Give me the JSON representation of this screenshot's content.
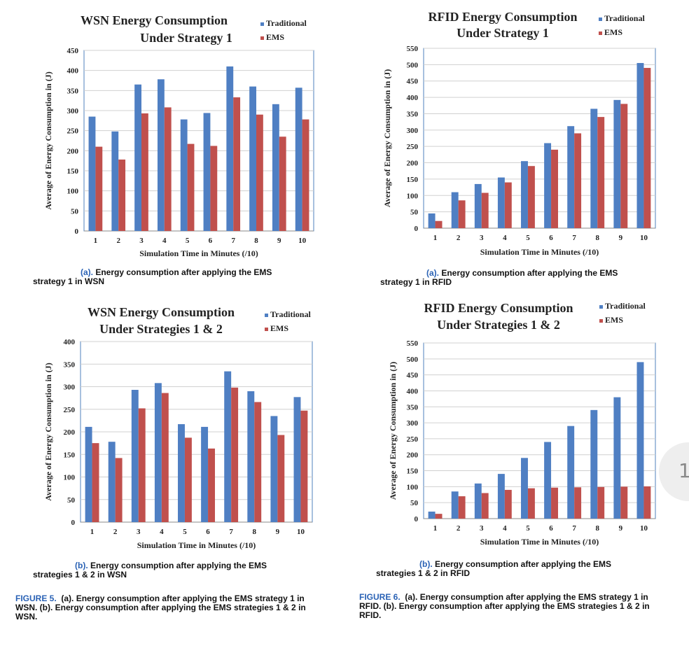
{
  "colors": {
    "traditional": "#4f7fc3",
    "ems": "#c0504d",
    "caption_label": "#2a62b5"
  },
  "chart_data": [
    {
      "type": "bar",
      "title_line1": "WSN Energy Consumption",
      "title_line2": "Under Strategy 1",
      "xlabel": "Simulation  Time  in Minutes  (/10)",
      "ylabel": "Average of Energy Consumption in (J)",
      "categories": [
        "1",
        "2",
        "3",
        "4",
        "5",
        "6",
        "7",
        "8",
        "9",
        "10"
      ],
      "ylim": [
        0,
        450
      ],
      "yticks": [
        0,
        50,
        100,
        150,
        200,
        250,
        300,
        350,
        400,
        450
      ],
      "series": [
        {
          "name": "Traditional",
          "values": [
            285,
            248,
            365,
            378,
            278,
            294,
            410,
            360,
            316,
            357
          ]
        },
        {
          "name": "EMS",
          "values": [
            210,
            178,
            293,
            308,
            217,
            212,
            333,
            290,
            235,
            278
          ]
        }
      ],
      "legend": "top-right",
      "grid": true
    },
    {
      "type": "bar",
      "title_line1": "RFID Energy Consumption",
      "title_line2": "Under Strategy 1",
      "xlabel": "Simulation  Time  in Minutes  (/10)",
      "ylabel": "Average of Energy  Consumption  in (J)",
      "categories": [
        "1",
        "2",
        "3",
        "4",
        "5",
        "6",
        "7",
        "8",
        "9",
        "10"
      ],
      "ylim": [
        0,
        550
      ],
      "yticks": [
        0,
        50,
        100,
        150,
        200,
        250,
        300,
        350,
        400,
        450,
        500,
        550
      ],
      "series": [
        {
          "name": "Traditional",
          "values": [
            45,
            110,
            135,
            155,
            205,
            260,
            312,
            365,
            392,
            505
          ]
        },
        {
          "name": "EMS",
          "values": [
            22,
            85,
            108,
            140,
            190,
            240,
            290,
            340,
            380,
            490
          ]
        }
      ],
      "legend": "top-right",
      "grid": true
    },
    {
      "type": "bar",
      "title_line1": "WSN Energy Consumption",
      "title_line2": "Under Strategies 1 & 2",
      "xlabel": "Simulation  Time  in Minutes  (/10)",
      "ylabel": "Average of Energy Consumption  in (J)",
      "categories": [
        "1",
        "2",
        "3",
        "4",
        "5",
        "6",
        "7",
        "8",
        "9",
        "10"
      ],
      "ylim": [
        0,
        400
      ],
      "yticks": [
        0,
        50,
        100,
        150,
        200,
        250,
        300,
        350,
        400
      ],
      "series": [
        {
          "name": "Traditional",
          "values": [
            211,
            178,
            293,
            308,
            217,
            211,
            334,
            290,
            235,
            277
          ]
        },
        {
          "name": "EMS",
          "values": [
            175,
            142,
            252,
            286,
            187,
            163,
            298,
            266,
            193,
            247
          ]
        }
      ],
      "legend": "top-right",
      "grid": true
    },
    {
      "type": "bar",
      "title_line1": "RFID Energy Consumption",
      "title_line2": "Under Strategies 1 & 2",
      "xlabel": "Simulation  Time  in Minutes  (/10)",
      "ylabel": "Average of Energy  Consumption  in (J)",
      "categories": [
        "1",
        "2",
        "3",
        "4",
        "5",
        "6",
        "7",
        "8",
        "9",
        "10"
      ],
      "ylim": [
        0,
        550
      ],
      "yticks": [
        0,
        50,
        100,
        150,
        200,
        250,
        300,
        350,
        400,
        450,
        500,
        550
      ],
      "series": [
        {
          "name": "Traditional",
          "values": [
            22,
            85,
            110,
            140,
            190,
            240,
            290,
            340,
            380,
            490
          ]
        },
        {
          "name": "EMS",
          "values": [
            15,
            70,
            80,
            90,
            95,
            97,
            98,
            99,
            100,
            101
          ]
        }
      ],
      "legend": "top-right",
      "grid": true
    }
  ],
  "captions": {
    "a1": {
      "label": "(a).",
      "rest": " Energy consumption after applying the EMS",
      "line2": "strategy 1 in WSN"
    },
    "a2": {
      "label": "(a).",
      "rest": " Energy consumption after applying the EMS",
      "line2": "strategy 1 in RFID"
    },
    "b1": {
      "label": "(b).",
      "rest": " Energy consumption after applying the EMS",
      "line2": "strategies 1 & 2 in WSN"
    },
    "b2": {
      "label": "(b).",
      "rest": " Energy consumption after applying the EMS",
      "line2": "strategies 1 & 2 in RFID"
    }
  },
  "figures": {
    "fig5": {
      "label": "FIGURE 5.",
      "line1": "  (a). Energy consumption after applying the EMS strategy 1 in",
      "line2": "WSN. (b). Energy consumption after applying the EMS strategies 1 & 2 in",
      "line3": "WSN."
    },
    "fig6": {
      "label": "FIGURE 6.",
      "line1": "  (a). Energy consumption after applying the EMS strategy 1 in",
      "line2": "RFID. (b). Energy consumption after applying the EMS strategies 1 & 2 in",
      "line3": "RFID."
    }
  },
  "page_number": "1"
}
